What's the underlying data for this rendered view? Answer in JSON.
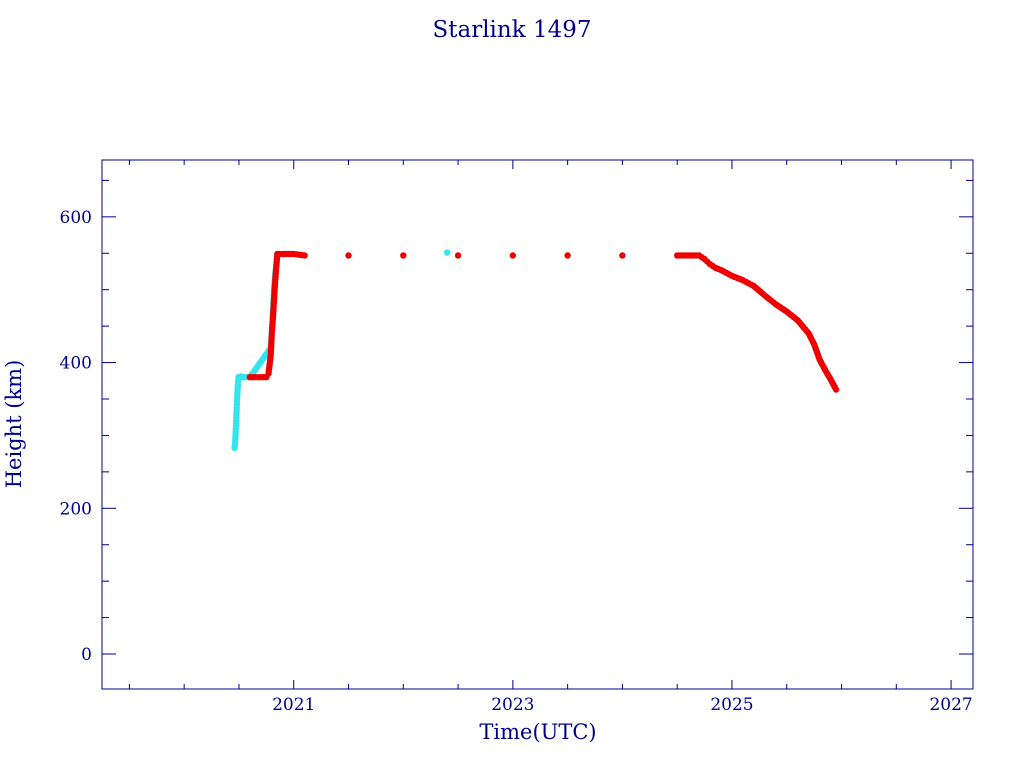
{
  "chart_data": {
    "type": "scatter",
    "title": "Starlink 1497",
    "xlabel": "Time(UTC)",
    "ylabel": "Height (km)",
    "xlim": [
      2019.25,
      2027.2
    ],
    "ylim": [
      -48,
      678
    ],
    "x_ticks": [
      2021,
      2023,
      2025,
      2027
    ],
    "x_minor_step": 0.5,
    "y_ticks": [
      0,
      200,
      400,
      600
    ],
    "y_minor_step": 50,
    "grid": false,
    "legend": "none",
    "colors": {
      "axes": "#00008b",
      "text": "#00008b",
      "cyan": "#33e6ee",
      "red": "#ee0000"
    },
    "series": [
      {
        "color": "#33e6ee",
        "x": [
          2020.46,
          2020.465,
          2020.47,
          2020.475,
          2020.48,
          2020.485,
          2020.49,
          2020.495,
          2020.5,
          2020.51,
          2020.52,
          2020.54,
          2020.56,
          2020.58,
          2020.6,
          2020.79,
          2020.8,
          2020.81,
          2020.82,
          2020.83,
          2020.85,
          2022.4
        ],
        "y": [
          283,
          290,
          305,
          320,
          338,
          355,
          370,
          380,
          380,
          380,
          381,
          380,
          380,
          380,
          380,
          420,
          440,
          470,
          500,
          520,
          545,
          551
        ]
      },
      {
        "color": "#ee0000",
        "x": [
          2020.6,
          2020.65,
          2020.7,
          2020.75,
          2020.77,
          2020.79,
          2020.8,
          2020.81,
          2020.82,
          2020.83,
          2020.84,
          2020.85,
          2020.87,
          2020.9,
          2020.95,
          2021.0,
          2021.05,
          2021.1,
          2021.5,
          2022.0,
          2022.5,
          2023.0,
          2023.5,
          2024.0,
          2024.5,
          2024.7,
          2024.75,
          2024.8,
          2024.85,
          2024.9,
          2025.0,
          2025.1,
          2025.2,
          2025.3,
          2025.4,
          2025.5,
          2025.6,
          2025.7,
          2025.75,
          2025.8,
          2025.85,
          2025.9,
          2025.95
        ],
        "y": [
          380,
          380,
          380,
          380,
          385,
          410,
          440,
          460,
          485,
          510,
          530,
          549,
          549,
          549,
          549,
          549,
          548,
          547,
          547,
          547,
          547,
          547,
          547,
          547,
          547,
          547,
          542,
          535,
          530,
          527,
          519,
          513,
          505,
          492,
          480,
          470,
          458,
          440,
          425,
          404,
          390,
          377,
          363
        ]
      }
    ]
  }
}
